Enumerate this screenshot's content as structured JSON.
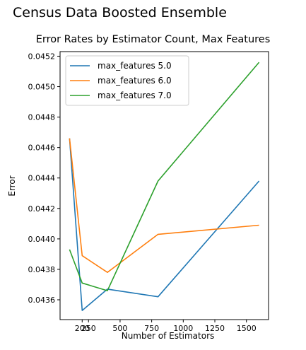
{
  "suptitle": "Census Data Boosted Ensemble",
  "chart_data": {
    "type": "line",
    "title": "Error Rates by Estimator Count, Max Features",
    "xlabel": "Number of Estimators",
    "ylabel": "Error",
    "x": [
      100,
      200,
      400,
      800,
      1600
    ],
    "xlim": [
      25,
      1675
    ],
    "ylim": [
      0.04347,
      0.04523
    ],
    "xticks": [
      200,
      250,
      500,
      750,
      1000,
      1250,
      1500
    ],
    "xtick_labels": [
      "200",
      "250",
      "500",
      "750",
      "1000",
      "1250",
      "1500"
    ],
    "yticks": [
      0.0436,
      0.0438,
      0.044,
      0.0442,
      0.0444,
      0.0446,
      0.0448,
      0.045,
      0.0452
    ],
    "ytick_labels": [
      "0.0436",
      "0.0438",
      "0.0440",
      "0.0442",
      "0.0444",
      "0.0446",
      "0.0448",
      "0.0450",
      "0.0452"
    ],
    "grid": false,
    "legend_position": "top-left",
    "series": [
      {
        "name": "max_features 5.0",
        "color": "#1f77b4",
        "values": [
          0.04466,
          0.04353,
          0.04367,
          0.04362,
          0.04438
        ]
      },
      {
        "name": "max_features 6.0",
        "color": "#ff7f0e",
        "values": [
          0.04466,
          0.04389,
          0.04378,
          0.04403,
          0.04409
        ]
      },
      {
        "name": "max_features 7.0",
        "color": "#2ca02c",
        "values": [
          0.04393,
          0.04371,
          0.04366,
          0.04438,
          0.04516
        ]
      }
    ]
  }
}
